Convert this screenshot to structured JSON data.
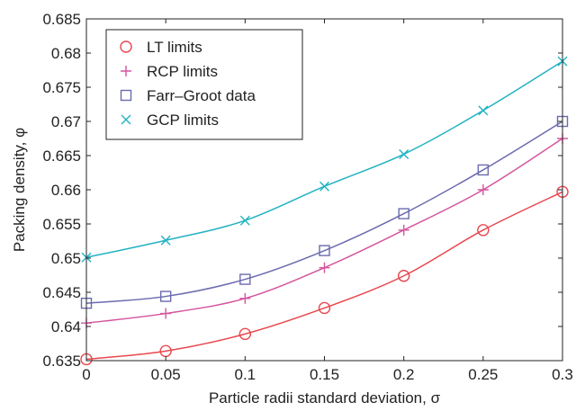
{
  "chart_data": {
    "type": "scatter",
    "xlabel": "Particle radii standard deviation, σ",
    "ylabel": "Packing density, φ",
    "xlim": [
      0,
      0.3
    ],
    "ylim": [
      0.635,
      0.685
    ],
    "x_ticks": [
      "0",
      "0.05",
      "0.1",
      "0.15",
      "0.2",
      "0.25",
      "0.3"
    ],
    "y_ticks": [
      "0.635",
      "0.64",
      "0.645",
      "0.65",
      "0.655",
      "0.66",
      "0.665",
      "0.67",
      "0.675",
      "0.68",
      "0.685"
    ],
    "grid": false,
    "legend_position": "top-left",
    "x": [
      0,
      0.05,
      0.1,
      0.15,
      0.2,
      0.25,
      0.3
    ],
    "series": [
      {
        "name": "LT limits",
        "marker": "circle",
        "color": "#e8474f",
        "values": [
          0.6352,
          0.6364,
          0.6389,
          0.6427,
          0.6474,
          0.6541,
          0.6597
        ]
      },
      {
        "name": "RCP limits",
        "marker": "plus",
        "color": "#d4559e",
        "values": [
          0.6405,
          0.6419,
          0.6441,
          0.6486,
          0.6541,
          0.66,
          0.6675
        ]
      },
      {
        "name": "Farr–Groot data",
        "marker": "square",
        "color": "#6a6aae",
        "values": [
          0.6434,
          0.6444,
          0.6469,
          0.6511,
          0.6565,
          0.6629,
          0.67
        ]
      },
      {
        "name": "GCP limits",
        "marker": "cross",
        "color": "#22b2c2",
        "values": [
          0.6501,
          0.6526,
          0.6555,
          0.6605,
          0.6652,
          0.6716,
          0.6788
        ]
      }
    ]
  }
}
